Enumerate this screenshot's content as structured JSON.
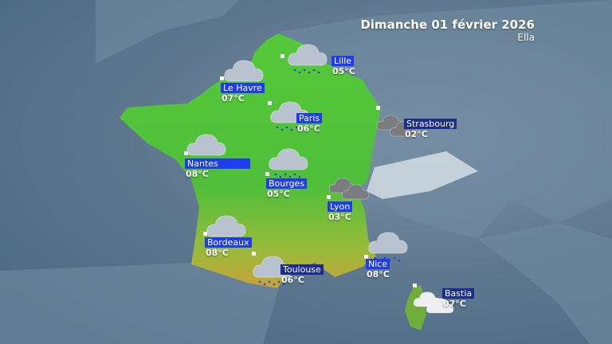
{
  "header": {
    "date": "Dimanche 01 février 2026",
    "storm_name": "Ella"
  },
  "colors": {
    "label_bright": "#1e3cf0",
    "label_dark": "#1c2c8c",
    "rain": "#2848c8",
    "cloud_light": "#b9c2cf",
    "cloud_dark": "#7a7c80",
    "cloud_white": "#eeeeee"
  },
  "cities": [
    {
      "name": "Lille",
      "temp": "05°C",
      "icon": "rain-cloud-icon",
      "label_style": "bright"
    },
    {
      "name": "Le Havre",
      "temp": "07°C",
      "icon": "rain-cloud-icon",
      "label_style": "bright"
    },
    {
      "name": "Paris",
      "temp": "06°C",
      "icon": "rain-cloud-icon",
      "label_style": "bright"
    },
    {
      "name": "Strasbourg",
      "temp": "02°C",
      "icon": "dark-clouds-icon",
      "label_style": "dark"
    },
    {
      "name": "Nantes",
      "temp": "08°C",
      "icon": "rain-cloud-icon",
      "label_style": "bright"
    },
    {
      "name": "Bourges",
      "temp": "05°C",
      "icon": "rain-cloud-icon",
      "label_style": "bright"
    },
    {
      "name": "Lyon",
      "temp": "03°C",
      "icon": "dark-clouds-icon",
      "label_style": "bright"
    },
    {
      "name": "Bordeaux",
      "temp": "08°C",
      "icon": "rain-cloud-icon",
      "label_style": "bright"
    },
    {
      "name": "Toulouse",
      "temp": "06°C",
      "icon": "rain-cloud-icon",
      "label_style": "dark"
    },
    {
      "name": "Nice",
      "temp": "08°C",
      "icon": "rain-cloud-icon",
      "label_style": "bright"
    },
    {
      "name": "Bastia",
      "temp": "07°C",
      "icon": "white-clouds-icon",
      "label_style": "dark"
    }
  ]
}
